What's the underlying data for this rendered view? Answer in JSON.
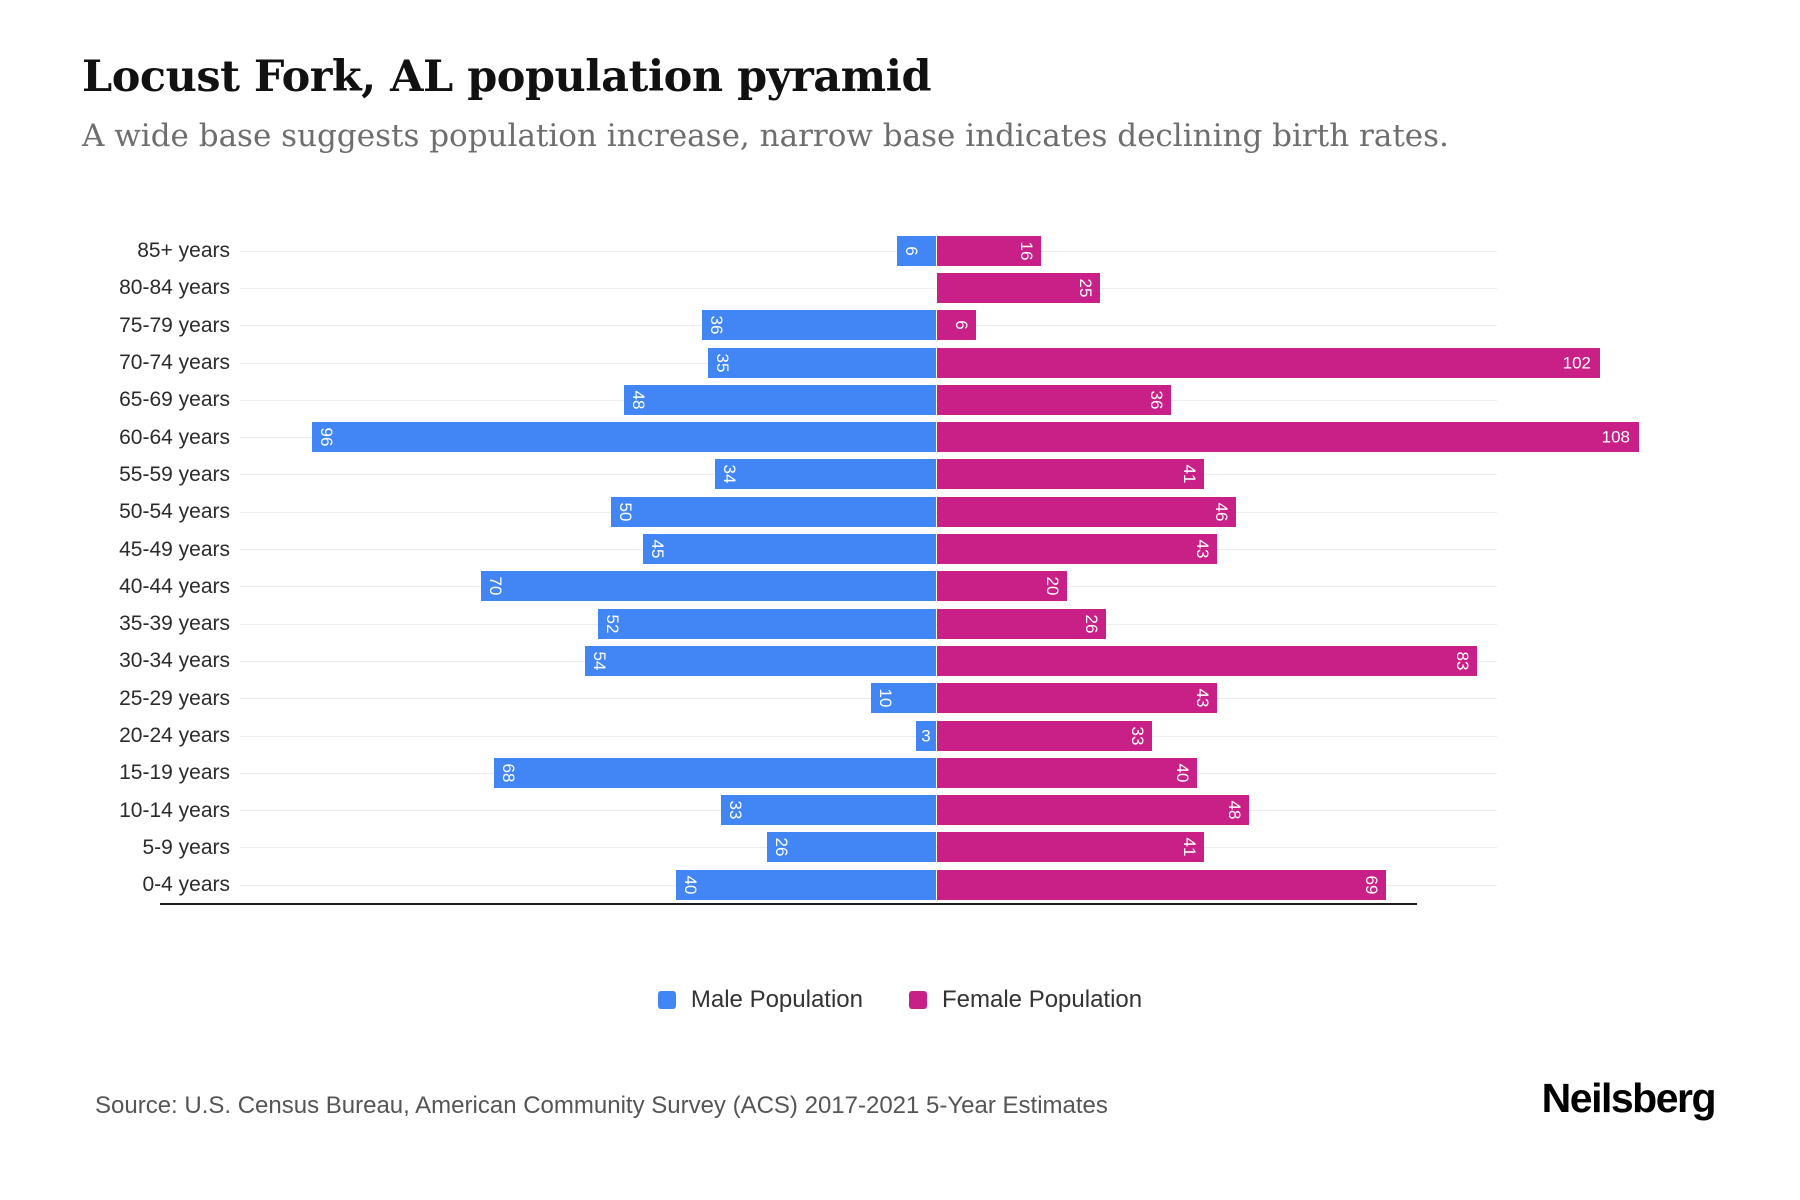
{
  "header": {
    "title": "Locust Fork, AL population pyramid",
    "subtitle": "A wide base suggests population increase, narrow base indicates declining birth rates."
  },
  "chart_data": {
    "type": "bar",
    "subtype": "population-pyramid",
    "orientation": "horizontal",
    "title": "Locust Fork, AL population pyramid",
    "subtitle": "A wide base suggests population increase, narrow base indicates declining birth rates.",
    "categories": [
      "85+ years",
      "80-84 years",
      "75-79 years",
      "70-74 years",
      "65-69 years",
      "60-64 years",
      "55-59 years",
      "50-54 years",
      "45-49 years",
      "40-44 years",
      "35-39 years",
      "30-34 years",
      "25-29 years",
      "20-24 years",
      "15-19 years",
      "10-14 years",
      "5-9 years",
      "0-4 years"
    ],
    "series": [
      {
        "name": "Male Population",
        "side": "left",
        "color": "#4285F4",
        "values": [
          6,
          0,
          36,
          35,
          48,
          96,
          34,
          50,
          45,
          70,
          52,
          54,
          10,
          3,
          68,
          33,
          26,
          40
        ]
      },
      {
        "name": "Female Population",
        "side": "right",
        "color": "#C92088",
        "values": [
          16,
          25,
          6,
          102,
          36,
          108,
          41,
          46,
          43,
          20,
          26,
          83,
          43,
          33,
          40,
          48,
          41,
          69
        ]
      }
    ],
    "xlabel": "",
    "ylabel": "",
    "value_axis": {
      "min": 0,
      "max_male": 96,
      "max_female": 108,
      "ticks_visible": false
    },
    "grid": true,
    "legend_position": "bottom",
    "bar_label_color": "#ffffff"
  },
  "footer": {
    "source": "Source: U.S. Census Bureau, American Community Survey (ACS) 2017-2021 5-Year Estimates",
    "brand": "Neilsberg"
  }
}
